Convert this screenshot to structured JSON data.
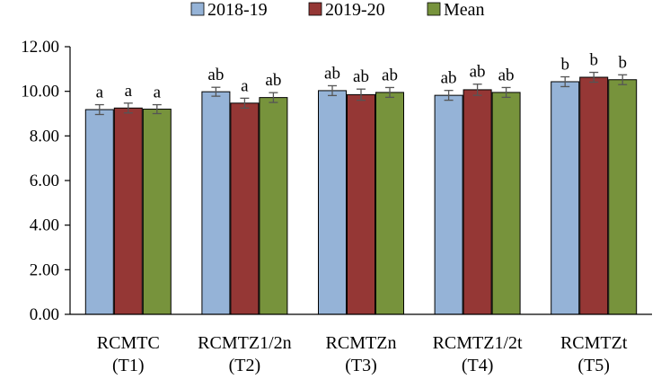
{
  "chart_data": {
    "type": "bar",
    "categories": [
      "RCMTC\n(T1)",
      "RCMTZ1/2n\n(T2)",
      "RCMTZn\n(T3)",
      "RCMTZ1/2t\n(T4)",
      "RCMTZt\n(T5)"
    ],
    "series": [
      {
        "name": "2018-19",
        "color": "#95B3D7",
        "values": [
          9.18,
          9.98,
          10.03,
          9.82,
          10.43
        ],
        "errors": [
          0.22,
          0.2,
          0.22,
          0.22,
          0.22
        ],
        "labels": [
          "a",
          "ab",
          "ab",
          "ab",
          "b"
        ]
      },
      {
        "name": "2019-20",
        "color": "#953735",
        "values": [
          9.25,
          9.47,
          9.85,
          10.07,
          10.63
        ],
        "errors": [
          0.22,
          0.22,
          0.25,
          0.25,
          0.22
        ],
        "labels": [
          "a",
          "a",
          "ab",
          "ab",
          "b"
        ]
      },
      {
        "name": "Mean",
        "color": "#77933C",
        "values": [
          9.2,
          9.72,
          9.95,
          9.95,
          10.52
        ],
        "errors": [
          0.2,
          0.22,
          0.22,
          0.22,
          0.22
        ],
        "labels": [
          "a",
          "ab",
          "ab",
          "ab",
          "b"
        ]
      }
    ],
    "yticks": [
      "0.00",
      "2.00",
      "4.00",
      "6.00",
      "8.00",
      "10.00",
      "12.00"
    ],
    "ylim": [
      0,
      12
    ],
    "title": "",
    "xlabel": "",
    "ylabel": "",
    "legend_position": "top-center"
  }
}
